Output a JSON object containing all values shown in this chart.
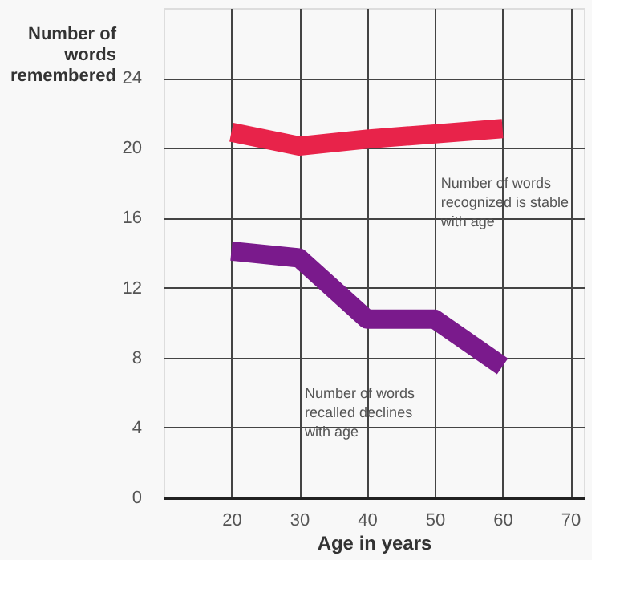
{
  "chart_data": {
    "type": "line",
    "xlabel": "Age in years",
    "ylabel": "Number of words remembered",
    "x": [
      20,
      30,
      40,
      50,
      60
    ],
    "series": [
      {
        "color": "#e8234a",
        "values": [
          20.9,
          20.1,
          20.5,
          20.8,
          21.1
        ]
      },
      {
        "color": "#7a1a8c",
        "values": [
          14.1,
          13.7,
          10.2,
          10.2,
          7.5
        ]
      }
    ],
    "xlim": [
      10,
      72
    ],
    "xticks": [
      20,
      30,
      40,
      50,
      60,
      70
    ],
    "ylim": [
      0,
      28
    ],
    "yticks": [
      0,
      4,
      8,
      12,
      16,
      20,
      24
    ],
    "grid": true,
    "marker": "none",
    "line_style": "solid",
    "annotations": [
      "Number of words recognized is stable with age",
      "Number of words recalled declines with age"
    ]
  }
}
